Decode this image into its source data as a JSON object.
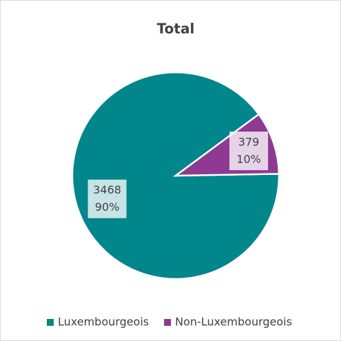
{
  "chart_data": {
    "type": "pie",
    "title": "Total",
    "categories": [
      "Luxembourgeois",
      "Non-Luxembourgeois"
    ],
    "values": [
      3468,
      379
    ],
    "percent_labels": [
      "90%",
      "10%"
    ],
    "colors": [
      "#00868b",
      "#8e3a93"
    ],
    "legend": "bottom"
  }
}
